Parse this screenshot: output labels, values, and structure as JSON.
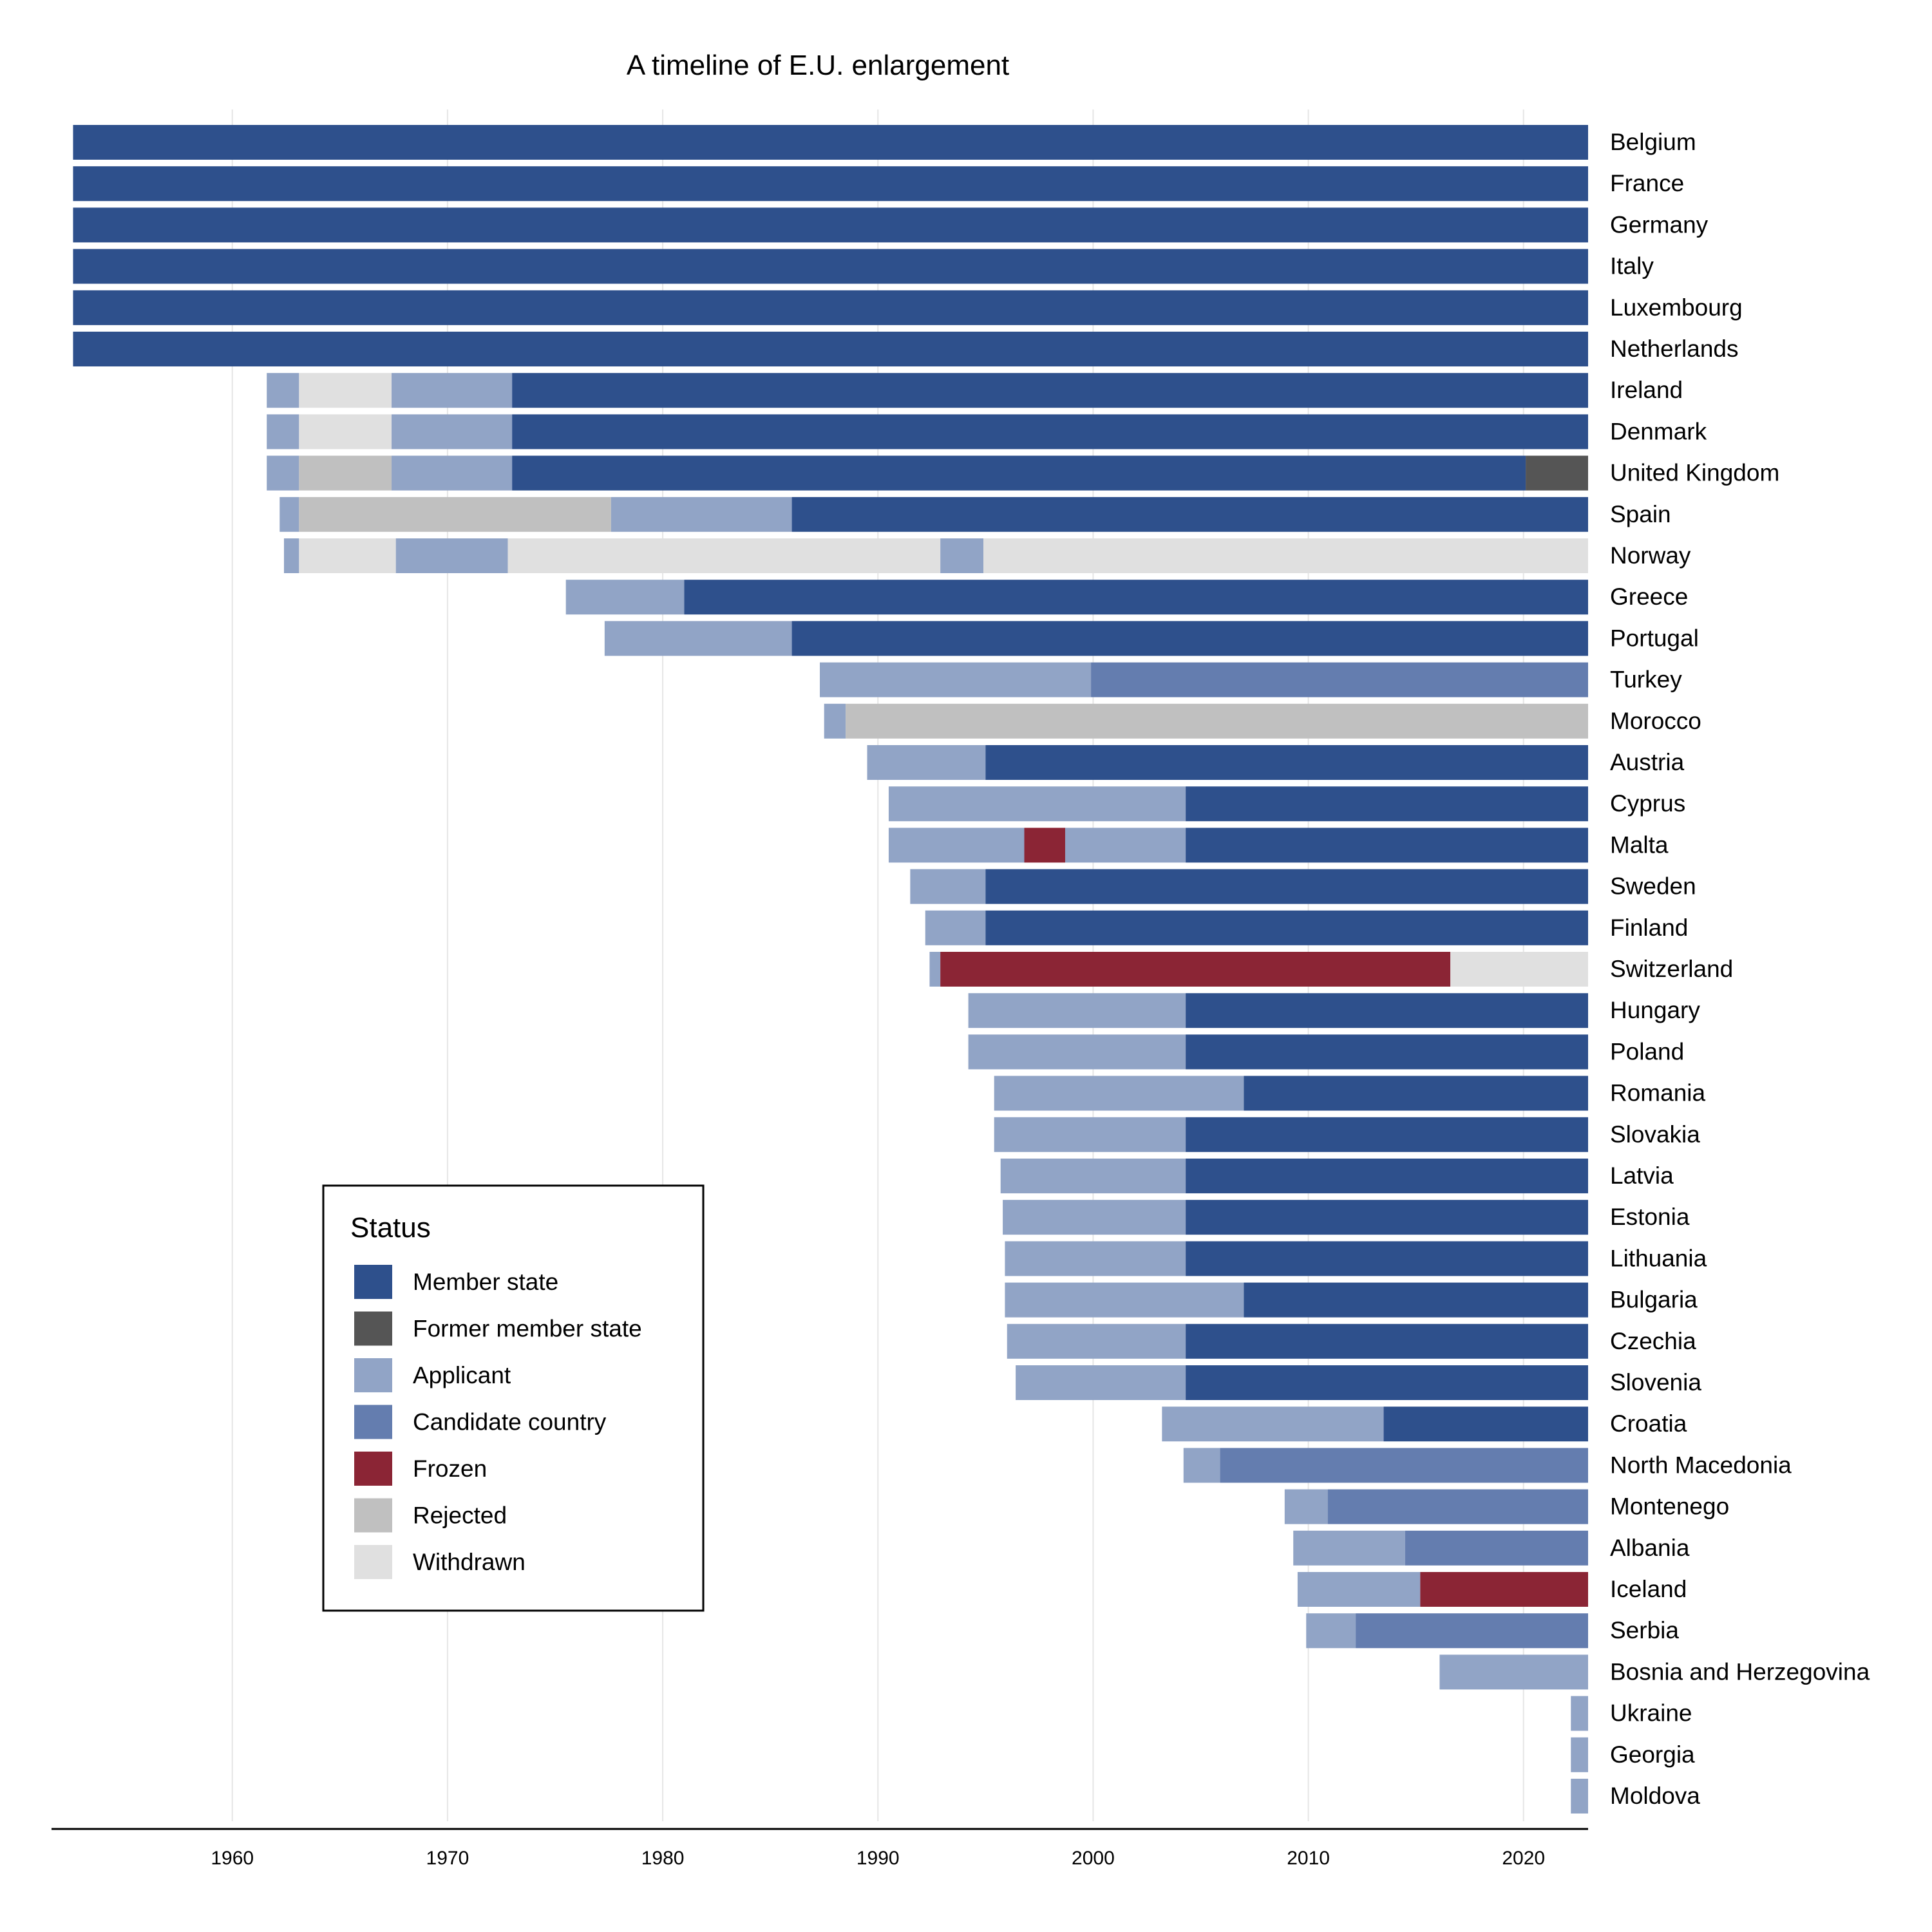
{
  "chart_data": {
    "type": "timeline",
    "title": "A timeline of E.U. enlargement",
    "xlim": [
      1951,
      2023
    ],
    "x_ticks": [
      1960,
      1970,
      1980,
      1990,
      2000,
      2010,
      2020
    ],
    "grid": "vertical",
    "legend": {
      "title": "Status",
      "position": "bottom-left",
      "items": [
        {
          "key": "member",
          "label": "Member state",
          "color": "#2E508C"
        },
        {
          "key": "former",
          "label": "Former member state",
          "color": "#555555"
        },
        {
          "key": "applicant",
          "label": "Applicant",
          "color": "#91A4C6"
        },
        {
          "key": "candidate",
          "label": "Candidate country",
          "color": "#647DAF"
        },
        {
          "key": "frozen",
          "label": "Frozen",
          "color": "#8B2535"
        },
        {
          "key": "rejected",
          "label": "Rejected",
          "color": "#C0C0C0"
        },
        {
          "key": "withdrawn",
          "label": "Withdrawn",
          "color": "#E0E0E0"
        }
      ]
    },
    "countries": [
      {
        "name": "Belgium",
        "segments": [
          [
            1952.6,
            2023,
            "member"
          ]
        ]
      },
      {
        "name": "France",
        "segments": [
          [
            1952.6,
            2023,
            "member"
          ]
        ]
      },
      {
        "name": "Germany",
        "segments": [
          [
            1952.6,
            2023,
            "member"
          ]
        ]
      },
      {
        "name": "Italy",
        "segments": [
          [
            1952.6,
            2023,
            "member"
          ]
        ]
      },
      {
        "name": "Luxembourg",
        "segments": [
          [
            1952.6,
            2023,
            "member"
          ]
        ]
      },
      {
        "name": "Netherlands",
        "segments": [
          [
            1952.6,
            2023,
            "member"
          ]
        ]
      },
      {
        "name": "Ireland",
        "segments": [
          [
            1961.6,
            1963.1,
            "applicant"
          ],
          [
            1963.1,
            1967.4,
            "withdrawn"
          ],
          [
            1967.4,
            1973.0,
            "applicant"
          ],
          [
            1973.0,
            2023,
            "member"
          ]
        ]
      },
      {
        "name": "Denmark",
        "segments": [
          [
            1961.6,
            1963.1,
            "applicant"
          ],
          [
            1963.1,
            1967.4,
            "withdrawn"
          ],
          [
            1967.4,
            1973.0,
            "applicant"
          ],
          [
            1973.0,
            2023,
            "member"
          ]
        ]
      },
      {
        "name": "United Kingdom",
        "segments": [
          [
            1961.6,
            1963.1,
            "applicant"
          ],
          [
            1963.1,
            1967.4,
            "rejected"
          ],
          [
            1967.4,
            1973.0,
            "applicant"
          ],
          [
            1973.0,
            2020.1,
            "member"
          ],
          [
            2020.1,
            2023,
            "former"
          ]
        ]
      },
      {
        "name": "Spain",
        "segments": [
          [
            1962.2,
            1963.1,
            "applicant"
          ],
          [
            1963.1,
            1977.6,
            "rejected"
          ],
          [
            1977.6,
            1986.0,
            "applicant"
          ],
          [
            1986.0,
            2023,
            "member"
          ]
        ]
      },
      {
        "name": "Norway",
        "segments": [
          [
            1962.4,
            1963.1,
            "applicant"
          ],
          [
            1963.1,
            1967.6,
            "withdrawn"
          ],
          [
            1967.6,
            1972.8,
            "applicant"
          ],
          [
            1972.8,
            1992.9,
            "withdrawn"
          ],
          [
            1992.9,
            1994.9,
            "applicant"
          ],
          [
            1994.9,
            2023,
            "withdrawn"
          ]
        ]
      },
      {
        "name": "Greece",
        "segments": [
          [
            1975.5,
            1981.0,
            "applicant"
          ],
          [
            1981.0,
            2023,
            "member"
          ]
        ]
      },
      {
        "name": "Portugal",
        "segments": [
          [
            1977.3,
            1986.0,
            "applicant"
          ],
          [
            1986.0,
            2023,
            "member"
          ]
        ]
      },
      {
        "name": "Turkey",
        "segments": [
          [
            1987.3,
            1999.9,
            "applicant"
          ],
          [
            1999.9,
            2023,
            "candidate"
          ]
        ]
      },
      {
        "name": "Morocco",
        "segments": [
          [
            1987.5,
            1988.5,
            "applicant"
          ],
          [
            1988.5,
            2023,
            "rejected"
          ]
        ]
      },
      {
        "name": "Austria",
        "segments": [
          [
            1989.5,
            1995.0,
            "applicant"
          ],
          [
            1995.0,
            2023,
            "member"
          ]
        ]
      },
      {
        "name": "Cyprus",
        "segments": [
          [
            1990.5,
            2004.3,
            "applicant"
          ],
          [
            2004.3,
            2023,
            "member"
          ]
        ]
      },
      {
        "name": "Malta",
        "segments": [
          [
            1990.5,
            1996.8,
            "applicant"
          ],
          [
            1996.8,
            1998.7,
            "frozen"
          ],
          [
            1998.7,
            2004.3,
            "applicant"
          ],
          [
            2004.3,
            2023,
            "member"
          ]
        ]
      },
      {
        "name": "Sweden",
        "segments": [
          [
            1991.5,
            1995.0,
            "applicant"
          ],
          [
            1995.0,
            2023,
            "member"
          ]
        ]
      },
      {
        "name": "Finland",
        "segments": [
          [
            1992.2,
            1995.0,
            "applicant"
          ],
          [
            1995.0,
            2023,
            "member"
          ]
        ]
      },
      {
        "name": "Switzerland",
        "segments": [
          [
            1992.4,
            1992.9,
            "applicant"
          ],
          [
            1992.9,
            2016.6,
            "frozen"
          ],
          [
            2016.6,
            2023,
            "withdrawn"
          ]
        ]
      },
      {
        "name": "Hungary",
        "segments": [
          [
            1994.2,
            2004.3,
            "applicant"
          ],
          [
            2004.3,
            2023,
            "member"
          ]
        ]
      },
      {
        "name": "Poland",
        "segments": [
          [
            1994.2,
            2004.3,
            "applicant"
          ],
          [
            2004.3,
            2023,
            "member"
          ]
        ]
      },
      {
        "name": "Romania",
        "segments": [
          [
            1995.4,
            2007.0,
            "applicant"
          ],
          [
            2007.0,
            2023,
            "member"
          ]
        ]
      },
      {
        "name": "Slovakia",
        "segments": [
          [
            1995.4,
            2004.3,
            "applicant"
          ],
          [
            2004.3,
            2023,
            "member"
          ]
        ]
      },
      {
        "name": "Latvia",
        "segments": [
          [
            1995.7,
            2004.3,
            "applicant"
          ],
          [
            2004.3,
            2023,
            "member"
          ]
        ]
      },
      {
        "name": "Estonia",
        "segments": [
          [
            1995.8,
            2004.3,
            "applicant"
          ],
          [
            2004.3,
            2023,
            "member"
          ]
        ]
      },
      {
        "name": "Lithuania",
        "segments": [
          [
            1995.9,
            2004.3,
            "applicant"
          ],
          [
            2004.3,
            2023,
            "member"
          ]
        ]
      },
      {
        "name": "Bulgaria",
        "segments": [
          [
            1995.9,
            2007.0,
            "applicant"
          ],
          [
            2007.0,
            2023,
            "member"
          ]
        ]
      },
      {
        "name": "Czechia",
        "segments": [
          [
            1996.0,
            2004.3,
            "applicant"
          ],
          [
            2004.3,
            2023,
            "member"
          ]
        ]
      },
      {
        "name": "Slovenia",
        "segments": [
          [
            1996.4,
            2004.3,
            "applicant"
          ],
          [
            2004.3,
            2023,
            "member"
          ]
        ]
      },
      {
        "name": "Croatia",
        "segments": [
          [
            2003.2,
            2013.5,
            "applicant"
          ],
          [
            2013.5,
            2023,
            "member"
          ]
        ]
      },
      {
        "name": "North Macedonia",
        "segments": [
          [
            2004.2,
            2005.9,
            "applicant"
          ],
          [
            2005.9,
            2023,
            "candidate"
          ]
        ]
      },
      {
        "name": "Montenego",
        "segments": [
          [
            2008.9,
            2010.9,
            "applicant"
          ],
          [
            2010.9,
            2023,
            "candidate"
          ]
        ]
      },
      {
        "name": "Albania",
        "segments": [
          [
            2009.3,
            2014.5,
            "applicant"
          ],
          [
            2014.5,
            2023,
            "candidate"
          ]
        ]
      },
      {
        "name": "Iceland",
        "segments": [
          [
            2009.5,
            2015.2,
            "applicant"
          ],
          [
            2015.2,
            2023,
            "frozen"
          ]
        ]
      },
      {
        "name": "Serbia",
        "segments": [
          [
            2009.9,
            2012.2,
            "applicant"
          ],
          [
            2012.2,
            2023,
            "candidate"
          ]
        ]
      },
      {
        "name": "Bosnia and Herzegovina",
        "segments": [
          [
            2016.1,
            2023,
            "applicant"
          ]
        ]
      },
      {
        "name": "Ukraine",
        "segments": [
          [
            2022.2,
            2023,
            "applicant"
          ]
        ]
      },
      {
        "name": "Georgia",
        "segments": [
          [
            2022.2,
            2023,
            "applicant"
          ]
        ]
      },
      {
        "name": "Moldova",
        "segments": [
          [
            2022.2,
            2023,
            "applicant"
          ]
        ]
      }
    ]
  }
}
